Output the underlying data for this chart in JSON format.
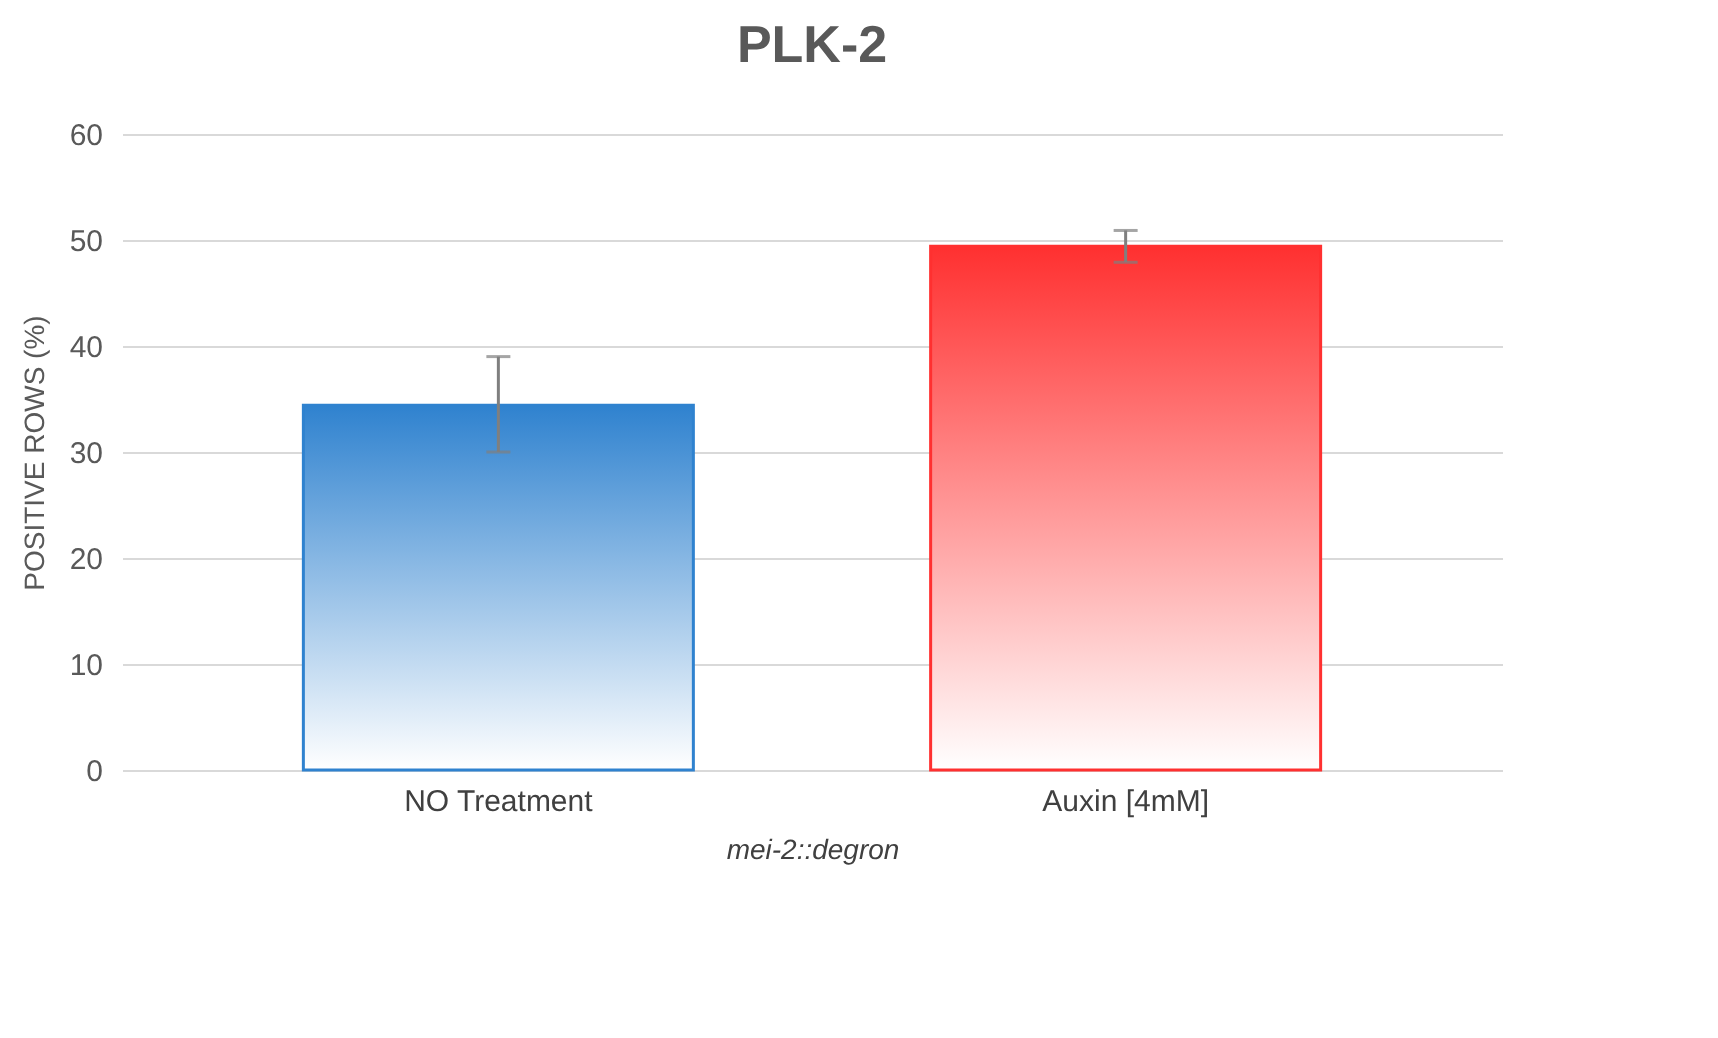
{
  "chart_data": {
    "type": "bar",
    "title": "PLK-2",
    "xlabel": "mei-2::degron",
    "ylabel": "POSITIVE ROWS (%)",
    "categories": [
      "NO Treatment",
      "Auxin [4mM]"
    ],
    "values": [
      34.4,
      49.4
    ],
    "colors": [
      "#2f82cf",
      "#ff3030"
    ],
    "errors": [
      [
        30,
        39
      ],
      [
        47.9,
        50.9
      ]
    ],
    "ylim": [
      0,
      60
    ],
    "yticks": [
      0,
      10,
      20,
      30,
      40,
      50,
      60
    ],
    "grid": "y"
  }
}
